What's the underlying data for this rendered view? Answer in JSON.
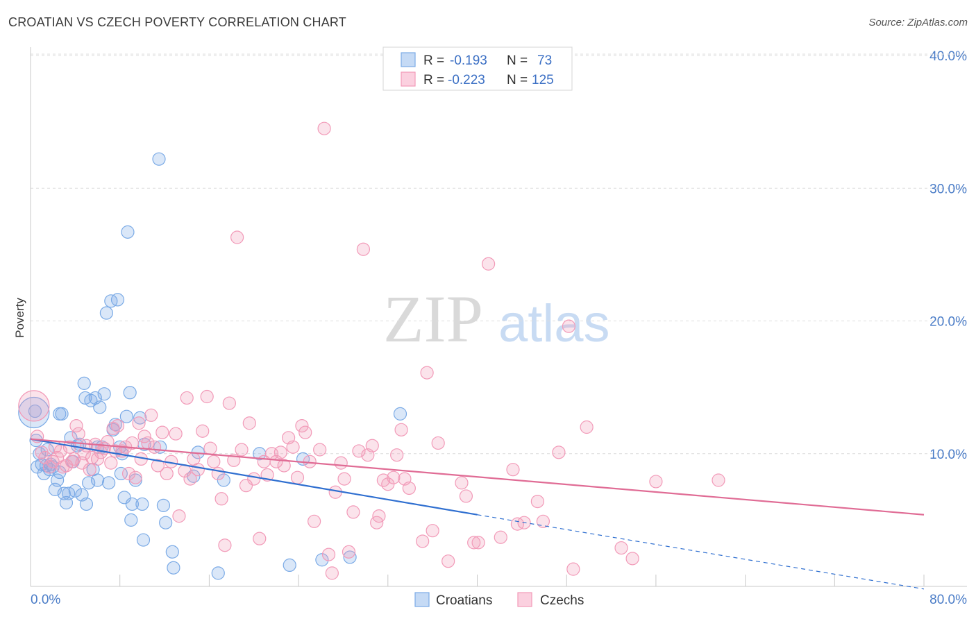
{
  "header": {
    "title": "CROATIAN VS CZECH POVERTY CORRELATION CHART",
    "source": "Source: ZipAtlas.com"
  },
  "watermark": {
    "zip": "ZIP",
    "atlas": "atlas"
  },
  "legend": {
    "rows": [
      {
        "r_label": "R =",
        "r_value": "-0.193",
        "n_label": "N =",
        "n_value": "73",
        "color": "#7aaae6"
      },
      {
        "r_label": "R =",
        "r_value": "-0.223",
        "n_label": "N =",
        "n_value": "125",
        "color": "#f29ab8"
      }
    ]
  },
  "bottom_legend": [
    {
      "label": "Croatians",
      "color": "#7aaae6"
    },
    {
      "label": "Czechs",
      "color": "#f29ab8"
    }
  ],
  "chart_data": {
    "type": "scatter",
    "title": "CROATIAN VS CZECH POVERTY CORRELATION CHART",
    "ylabel": "Poverty",
    "xlabel": "",
    "xlim": [
      0,
      80
    ],
    "ylim": [
      0,
      40
    ],
    "y_ticks": [
      "40.0%",
      "30.0%",
      "20.0%",
      "10.0%"
    ],
    "y_tick_values": [
      40,
      30,
      20,
      10
    ],
    "x_tick_labels": [
      "0.0%",
      "80.0%"
    ],
    "grid": "horizontal dashed",
    "legend_placement": "top-center",
    "series": [
      {
        "name": "Croatians",
        "color": "#7aaae6",
        "line_color": "#2f6fd0",
        "trend": {
          "x_start": 0,
          "y_start": 11.1,
          "x_solid_end": 40,
          "y_solid_end": 5.4,
          "x_end": 80,
          "y_end": -0.2
        },
        "points": [
          [
            0.4,
            13.2
          ],
          [
            0.5,
            11.0
          ],
          [
            0.6,
            9.0
          ],
          [
            0.8,
            10.0
          ],
          [
            1.0,
            9.2
          ],
          [
            1.2,
            8.5
          ],
          [
            1.4,
            9.1
          ],
          [
            1.5,
            10.3
          ],
          [
            1.7,
            8.8
          ],
          [
            1.8,
            9.2
          ],
          [
            2.0,
            9.0
          ],
          [
            2.2,
            7.3
          ],
          [
            2.4,
            8.0
          ],
          [
            2.6,
            8.6
          ],
          [
            2.6,
            13.0
          ],
          [
            2.8,
            13.0
          ],
          [
            3.0,
            7.0
          ],
          [
            3.2,
            6.3
          ],
          [
            3.4,
            7.0
          ],
          [
            3.6,
            11.2
          ],
          [
            3.8,
            9.4
          ],
          [
            4.0,
            7.2
          ],
          [
            4.2,
            10.6
          ],
          [
            4.4,
            10.7
          ],
          [
            4.6,
            6.9
          ],
          [
            4.8,
            15.3
          ],
          [
            4.9,
            14.2
          ],
          [
            5.0,
            6.2
          ],
          [
            5.2,
            7.8
          ],
          [
            5.4,
            14.0
          ],
          [
            5.6,
            8.8
          ],
          [
            5.8,
            14.2
          ],
          [
            6.0,
            8.0
          ],
          [
            6.0,
            10.5
          ],
          [
            6.2,
            13.5
          ],
          [
            6.4,
            10.5
          ],
          [
            6.6,
            14.5
          ],
          [
            6.8,
            20.6
          ],
          [
            7.0,
            7.8
          ],
          [
            7.2,
            21.5
          ],
          [
            7.4,
            11.8
          ],
          [
            7.6,
            12.2
          ],
          [
            7.8,
            21.6
          ],
          [
            8.0,
            10.5
          ],
          [
            8.1,
            8.5
          ],
          [
            8.2,
            10.0
          ],
          [
            8.4,
            6.7
          ],
          [
            8.6,
            12.8
          ],
          [
            8.7,
            26.7
          ],
          [
            8.9,
            14.6
          ],
          [
            9.0,
            5.0
          ],
          [
            9.1,
            6.2
          ],
          [
            9.4,
            8.0
          ],
          [
            9.8,
            12.7
          ],
          [
            10.0,
            6.2
          ],
          [
            10.1,
            3.5
          ],
          [
            10.2,
            10.7
          ],
          [
            11.5,
            32.2
          ],
          [
            11.6,
            10.5
          ],
          [
            11.9,
            6.1
          ],
          [
            12.1,
            4.8
          ],
          [
            12.7,
            2.6
          ],
          [
            12.8,
            1.4
          ],
          [
            14.6,
            8.3
          ],
          [
            15.0,
            10.1
          ],
          [
            16.8,
            1.0
          ],
          [
            17.3,
            8.0
          ],
          [
            20.5,
            10.0
          ],
          [
            23.2,
            1.6
          ],
          [
            24.4,
            9.6
          ],
          [
            26.1,
            2.0
          ],
          [
            28.6,
            2.2
          ],
          [
            33.1,
            13.0
          ]
        ],
        "big_point": [
          0.3,
          13.1
        ]
      },
      {
        "name": "Czechs",
        "color": "#f29ab8",
        "line_color": "#e06c95",
        "trend": {
          "x_start": 0,
          "y_start": 11.1,
          "x_end": 80,
          "y_end": 5.4
        },
        "points": [
          [
            0.6,
            11.3
          ],
          [
            1.0,
            10.1
          ],
          [
            1.3,
            9.7
          ],
          [
            1.7,
            9.0
          ],
          [
            2.0,
            9.4
          ],
          [
            2.2,
            10.5
          ],
          [
            2.4,
            9.7
          ],
          [
            2.7,
            10.2
          ],
          [
            2.9,
            9.0
          ],
          [
            3.2,
            9.1
          ],
          [
            3.5,
            10.5
          ],
          [
            3.7,
            9.4
          ],
          [
            3.9,
            9.6
          ],
          [
            4.1,
            12.1
          ],
          [
            4.3,
            11.5
          ],
          [
            4.6,
            9.3
          ],
          [
            4.8,
            10.0
          ],
          [
            5.0,
            10.6
          ],
          [
            5.3,
            8.8
          ],
          [
            5.5,
            9.7
          ],
          [
            5.8,
            10.7
          ],
          [
            6.0,
            9.6
          ],
          [
            6.3,
            10.1
          ],
          [
            6.6,
            10.4
          ],
          [
            6.9,
            10.9
          ],
          [
            7.2,
            9.3
          ],
          [
            7.4,
            11.9
          ],
          [
            7.6,
            10.2
          ],
          [
            7.8,
            12.1
          ],
          [
            8.2,
            10.2
          ],
          [
            8.5,
            10.5
          ],
          [
            8.8,
            8.5
          ],
          [
            9.1,
            10.8
          ],
          [
            9.4,
            8.2
          ],
          [
            9.7,
            12.3
          ],
          [
            9.9,
            9.6
          ],
          [
            10.2,
            11.3
          ],
          [
            10.5,
            10.8
          ],
          [
            10.8,
            12.9
          ],
          [
            11.1,
            10.5
          ],
          [
            11.4,
            9.1
          ],
          [
            11.8,
            11.6
          ],
          [
            12.2,
            8.5
          ],
          [
            12.6,
            9.4
          ],
          [
            13.0,
            11.5
          ],
          [
            13.3,
            5.3
          ],
          [
            13.8,
            8.7
          ],
          [
            14.0,
            14.2
          ],
          [
            14.3,
            8.1
          ],
          [
            14.6,
            9.6
          ],
          [
            15.0,
            8.8
          ],
          [
            15.4,
            11.7
          ],
          [
            15.8,
            14.3
          ],
          [
            16.1,
            10.4
          ],
          [
            16.4,
            9.4
          ],
          [
            16.8,
            8.5
          ],
          [
            17.1,
            6.6
          ],
          [
            17.4,
            3.1
          ],
          [
            17.8,
            13.8
          ],
          [
            18.2,
            9.5
          ],
          [
            18.5,
            26.3
          ],
          [
            18.9,
            10.3
          ],
          [
            19.3,
            7.6
          ],
          [
            19.6,
            12.3
          ],
          [
            20.0,
            8.1
          ],
          [
            20.5,
            3.6
          ],
          [
            20.9,
            9.4
          ],
          [
            21.2,
            8.4
          ],
          [
            21.6,
            10.0
          ],
          [
            22.0,
            9.4
          ],
          [
            22.4,
            10.1
          ],
          [
            22.7,
            9.1
          ],
          [
            23.1,
            11.2
          ],
          [
            23.5,
            10.5
          ],
          [
            23.9,
            8.2
          ],
          [
            24.3,
            12.1
          ],
          [
            24.6,
            11.6
          ],
          [
            25.0,
            9.4
          ],
          [
            25.4,
            4.9
          ],
          [
            25.9,
            10.3
          ],
          [
            26.3,
            34.5
          ],
          [
            26.7,
            2.4
          ],
          [
            27.0,
            1.0
          ],
          [
            27.3,
            7.1
          ],
          [
            27.8,
            9.3
          ],
          [
            28.1,
            8.1
          ],
          [
            28.5,
            2.6
          ],
          [
            28.9,
            5.6
          ],
          [
            29.4,
            10.2
          ],
          [
            29.8,
            25.4
          ],
          [
            30.2,
            9.9
          ],
          [
            30.6,
            10.6
          ],
          [
            31.0,
            4.8
          ],
          [
            31.2,
            5.3
          ],
          [
            31.6,
            8.0
          ],
          [
            32.0,
            7.7
          ],
          [
            32.5,
            8.2
          ],
          [
            32.8,
            9.9
          ],
          [
            33.2,
            11.8
          ],
          [
            33.5,
            8.1
          ],
          [
            33.9,
            7.4
          ],
          [
            35.1,
            3.4
          ],
          [
            35.5,
            16.1
          ],
          [
            36.0,
            4.2
          ],
          [
            36.5,
            10.8
          ],
          [
            37.4,
            1.9
          ],
          [
            38.6,
            7.8
          ],
          [
            39.0,
            6.8
          ],
          [
            39.7,
            3.3
          ],
          [
            40.1,
            3.3
          ],
          [
            41.0,
            24.3
          ],
          [
            42.1,
            3.7
          ],
          [
            43.2,
            8.8
          ],
          [
            44.2,
            4.8
          ],
          [
            45.4,
            6.4
          ],
          [
            45.9,
            4.9
          ],
          [
            47.3,
            10.1
          ],
          [
            48.2,
            19.6
          ],
          [
            48.6,
            1.3
          ],
          [
            49.8,
            12.0
          ],
          [
            52.9,
            2.9
          ],
          [
            53.9,
            2.1
          ],
          [
            56.0,
            7.9
          ],
          [
            61.6,
            8.0
          ],
          [
            43.6,
            4.7
          ]
        ],
        "big_point": [
          0.3,
          13.6
        ]
      }
    ]
  }
}
